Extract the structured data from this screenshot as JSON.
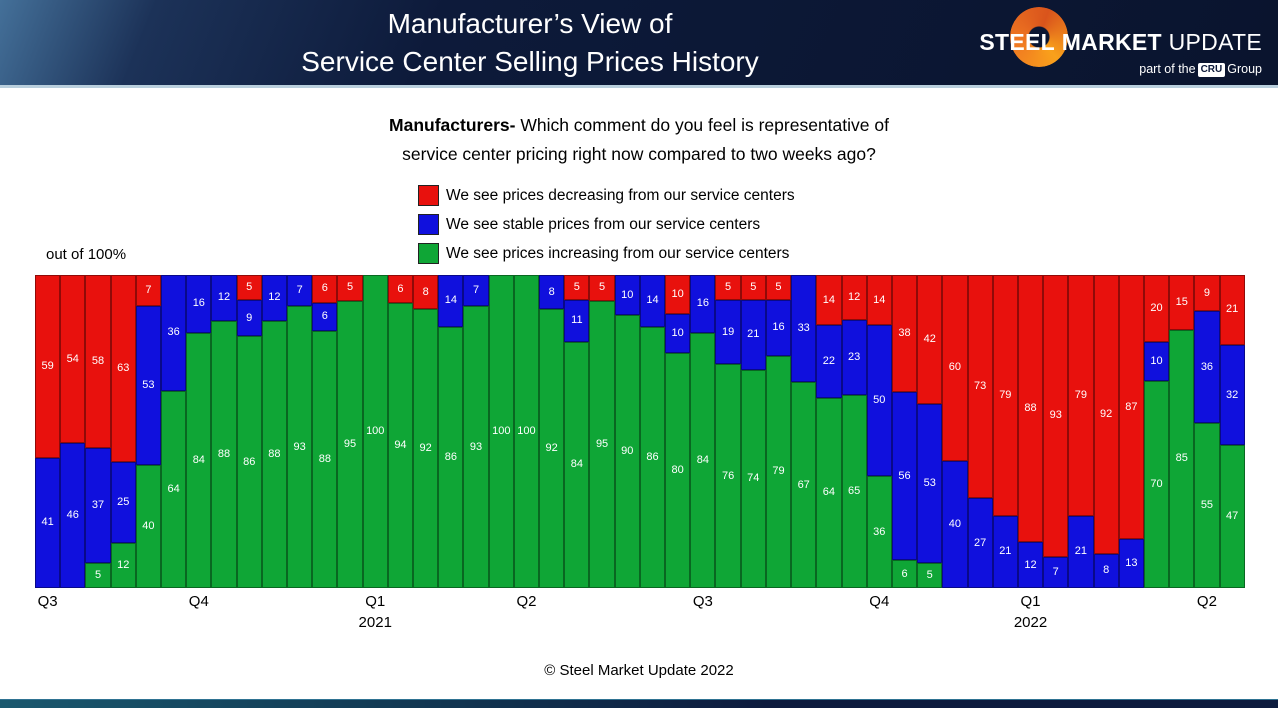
{
  "header": {
    "title_line1": "Manufacturer’s View of",
    "title_line2": "Service Center Selling Prices History",
    "logo": {
      "steel": "STEEL",
      "market": "MARKET",
      "update": "UPDATE",
      "tagline_prefix": "part of the",
      "tagline_cru": "CRU",
      "tagline_suffix": "Group"
    }
  },
  "subtitle": {
    "bold": "Manufacturers-",
    "line1_rest": " Which comment do you feel is representative of",
    "line2": "service center pricing right now compared to two weeks ago?"
  },
  "axis_note": "out of 100%",
  "legend": [
    {
      "label": "We see prices decreasing from our service centers",
      "color": "#e8110d"
    },
    {
      "label": "We see stable prices from our service centers",
      "color": "#1010dd"
    },
    {
      "label": "We see prices increasing from our service centers",
      "color": "#0fa636"
    }
  ],
  "footer": "© Steel Market Update 2022",
  "chart_data": {
    "type": "bar",
    "stacked": true,
    "percent_total": 100,
    "ylim": [
      0,
      100
    ],
    "title": "Manufacturers- Which comment do you feel is representative of service center pricing right now compared to two weeks ago?",
    "ylabel": "out of 100%",
    "legend_position": "top",
    "grid": false,
    "series": [
      {
        "name": "We see prices decreasing from our service centers",
        "color": "#e8110d",
        "values": [
          59,
          54,
          58,
          63,
          7,
          0,
          0,
          0,
          5,
          0,
          0,
          6,
          5,
          0,
          6,
          8,
          0,
          0,
          0,
          0,
          0,
          5,
          5,
          0,
          0,
          10,
          0,
          5,
          5,
          5,
          0,
          14,
          12,
          14,
          38,
          42,
          60,
          73,
          79,
          88,
          93,
          79,
          92,
          87,
          20,
          15,
          9,
          21
        ]
      },
      {
        "name": "We see stable prices from our service centers",
        "color": "#1010dd",
        "values": [
          41,
          46,
          37,
          25,
          53,
          36,
          16,
          12,
          9,
          12,
          7,
          6,
          0,
          0,
          0,
          0,
          14,
          7,
          0,
          0,
          8,
          11,
          0,
          10,
          14,
          10,
          16,
          19,
          21,
          16,
          33,
          22,
          23,
          50,
          56,
          53,
          40,
          27,
          21,
          12,
          7,
          21,
          8,
          13,
          10,
          0,
          36,
          32
        ]
      },
      {
        "name": "We see prices increasing from our service centers",
        "color": "#0fa636",
        "values": [
          0,
          0,
          5,
          12,
          40,
          64,
          84,
          88,
          86,
          88,
          93,
          88,
          95,
          100,
          94,
          92,
          86,
          93,
          100,
          100,
          92,
          84,
          95,
          90,
          86,
          80,
          84,
          76,
          74,
          79,
          67,
          64,
          65,
          36,
          6,
          5,
          0,
          0,
          0,
          0,
          0,
          0,
          0,
          0,
          70,
          85,
          55,
          47
        ]
      }
    ],
    "x_axis_labels": [
      {
        "index": 0,
        "label": "Q3"
      },
      {
        "index": 6,
        "label": "Q4"
      },
      {
        "index": 13,
        "label": "Q1",
        "year": "2021"
      },
      {
        "index": 19,
        "label": "Q2"
      },
      {
        "index": 26,
        "label": "Q3"
      },
      {
        "index": 33,
        "label": "Q4"
      },
      {
        "index": 39,
        "label": "Q1",
        "year": "2022"
      },
      {
        "index": 46,
        "label": "Q2"
      }
    ]
  }
}
